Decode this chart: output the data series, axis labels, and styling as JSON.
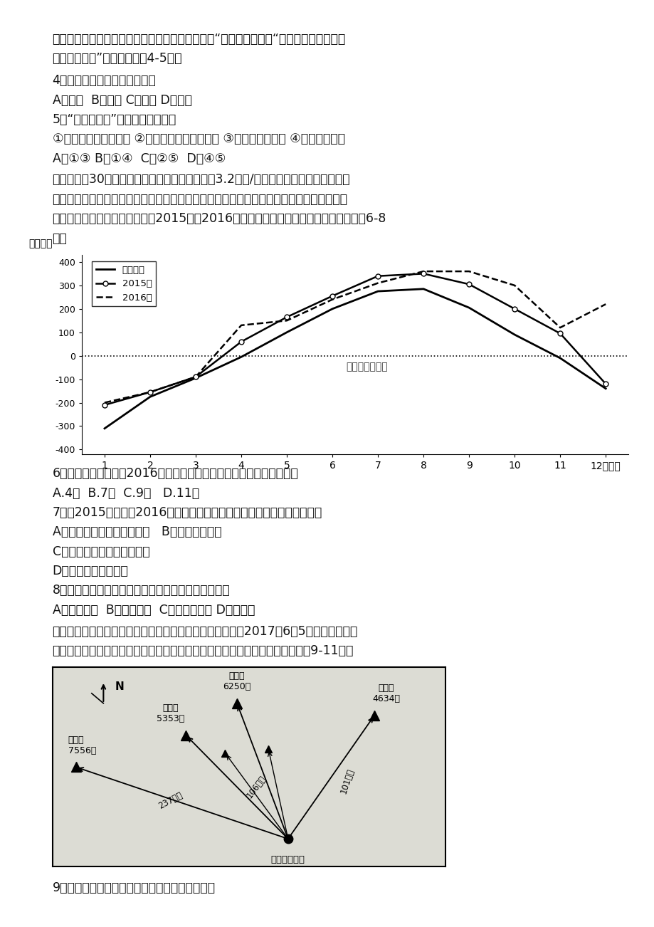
{
  "page_bg": "#ffffff",
  "text_color": "#111111",
  "top_lines": [
    "我国民间有很多关于雪的谚语蒋含科学道理，例如“瑞雪兆丰年梦、“冬天麦盖三层被，来",
    "年枕着馍头睡”等。据此完成4-5题。"
  ],
  "q4": "4．上述谚语适用的主要地区是",
  "q4_opts": "A．东北  B．华北 C．西南 D．华南",
  "q5": "5．“瑞雪兆丰年”，是因为大雪能够",
  "q5_sub": "①使越冬作物防冻保暖 ②改善来年春季土壤垒情 ③增加土壤有机质 ④抑制沙尘天气",
  "q5_opts": "A．①③ B．①④  C．②⑤  D．④⑤",
  "para2_lines": [
    "据统计，近30多年来我国沿海海平面上升速率为3.2毫米/年，不同省份、不同季节海平",
    "面升降状况存在差异。导致海平面变化的因素十分复杂，海平面上升会给沿海地区带来诸多",
    "不利影响。下图示意天津市沿情2015年、2016年与常年同期海平面逐月变化。据此完成6-8",
    "题。"
  ],
  "normal_y": [
    -310,
    -175,
    -95,
    -5,
    100,
    200,
    275,
    285,
    205,
    90,
    -10,
    -140
  ],
  "y2015": [
    -210,
    -155,
    -90,
    60,
    165,
    255,
    340,
    350,
    305,
    200,
    95,
    -120
  ],
  "y2016": [
    -200,
    -155,
    -90,
    130,
    150,
    240,
    310,
    360,
    360,
    300,
    120,
    220
  ],
  "chart_ylabel": "（毫米）",
  "chart_annotation": "常年平均海平面",
  "legend_normal": "常年同期",
  "legend_2015": "2015年",
  "legend_2016": "2016年",
  "q6": "6．与常年同期相比，2016年天津市沿海海平面上升幅度最大的月份是",
  "q6_opts": "A.4月  B.7月  C.9月   D.11月",
  "q7": "7．与2015年相比，2016年天津市沿海海平面总体变化带来的影响可能是",
  "q7_a": "A．河口发生咏潮的次数减少   B．陆地面积增大",
  "q7_c": "C．海水人侵造成的危害减弱",
  "q7_d": "D．海岸侵蚀程度加大",
  "q8": "8．影响天津市沿海常年同期海平面变化的主要因素是",
  "q8_opts": "A．气候变暖  B．热带气旋  C．入海径流量 D．盛行风",
  "para3_lines": [
    "成都附近有十几座雪山，但这些雪山往年成都人难得一见。2017年6月5日，成都人却看",
    "到了一座座晶莹别透的雪山。下图示意成都天府广场可见的雪山位置。据此回南9-11题。"
  ],
  "q9": "9．成都人可遥望贡嘎雪山，主要原因是由于成都"
}
